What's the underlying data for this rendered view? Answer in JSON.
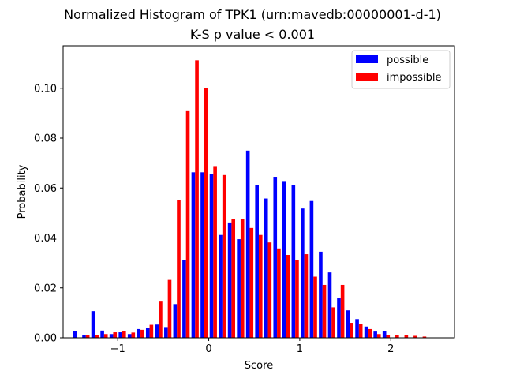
{
  "chart_data": {
    "type": "bar",
    "title": "Normalized Histogram of TPK1 (urn:mavedb:00000001-d-1)",
    "subtitle": "K-S p value < 0.001",
    "xlabel": "Score",
    "ylabel": "Probability",
    "xlim": [
      -1.6,
      2.7
    ],
    "ylim": [
      0,
      0.117
    ],
    "xticks": [
      -1,
      0,
      1,
      2
    ],
    "xtick_labels": [
      "−1",
      "0",
      "1",
      "2"
    ],
    "yticks": [
      0.0,
      0.02,
      0.04,
      0.06,
      0.08,
      0.1
    ],
    "ytick_labels": [
      "0.00",
      "0.02",
      "0.04",
      "0.06",
      "0.08",
      "0.10"
    ],
    "bin_width": 0.1,
    "legend_position": "top-right",
    "grid": false,
    "x": [
      -1.45,
      -1.35,
      -1.25,
      -1.15,
      -1.05,
      -0.95,
      -0.85,
      -0.75,
      -0.65,
      -0.55,
      -0.45,
      -0.35,
      -0.25,
      -0.15,
      -0.05,
      0.05,
      0.15,
      0.25,
      0.35,
      0.45,
      0.55,
      0.65,
      0.75,
      0.85,
      0.95,
      1.05,
      1.15,
      1.25,
      1.35,
      1.45,
      1.55,
      1.65,
      1.75,
      1.85,
      1.95,
      2.05,
      2.15,
      2.25,
      2.35,
      2.45
    ],
    "series": [
      {
        "name": "possible",
        "color": "#0000ff",
        "values": [
          0.0027,
          0.001,
          0.0107,
          0.0029,
          0.0015,
          0.0022,
          0.0015,
          0.0035,
          0.0038,
          0.0053,
          0.0043,
          0.0135,
          0.031,
          0.0663,
          0.0663,
          0.0655,
          0.0412,
          0.0462,
          0.0395,
          0.075,
          0.0612,
          0.0558,
          0.0645,
          0.0628,
          0.0612,
          0.0518,
          0.0548,
          0.0345,
          0.0262,
          0.0158,
          0.011,
          0.0075,
          0.0045,
          0.0025,
          0.0028,
          0.0,
          0.0,
          0.0,
          0.0,
          0.0
        ]
      },
      {
        "name": "impossible",
        "color": "#ff0000",
        "values": [
          0.0,
          0.001,
          0.001,
          0.0015,
          0.0022,
          0.0027,
          0.0021,
          0.0032,
          0.0052,
          0.0145,
          0.0232,
          0.0552,
          0.0908,
          0.1112,
          0.1002,
          0.0688,
          0.0652,
          0.0475,
          0.0475,
          0.044,
          0.0412,
          0.0382,
          0.0358,
          0.0332,
          0.0312,
          0.0335,
          0.0245,
          0.0212,
          0.0122,
          0.0212,
          0.006,
          0.0055,
          0.0035,
          0.0015,
          0.0012,
          0.001,
          0.001,
          0.0008,
          0.0005,
          0.0
        ]
      }
    ]
  }
}
